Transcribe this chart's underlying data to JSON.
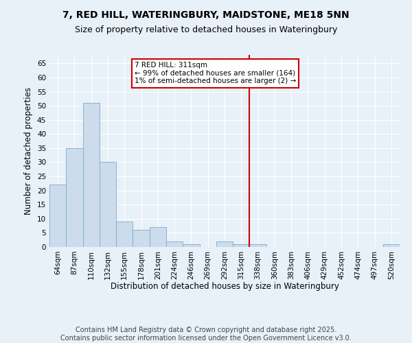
{
  "title": "7, RED HILL, WATERINGBURY, MAIDSTONE, ME18 5NN",
  "subtitle": "Size of property relative to detached houses in Wateringbury",
  "xlabel": "Distribution of detached houses by size in Wateringbury",
  "ylabel": "Number of detached properties",
  "bar_labels": [
    "64sqm",
    "87sqm",
    "110sqm",
    "132sqm",
    "155sqm",
    "178sqm",
    "201sqm",
    "224sqm",
    "246sqm",
    "269sqm",
    "292sqm",
    "315sqm",
    "338sqm",
    "360sqm",
    "383sqm",
    "406sqm",
    "429sqm",
    "452sqm",
    "474sqm",
    "497sqm",
    "520sqm"
  ],
  "bar_values": [
    22,
    35,
    51,
    30,
    9,
    6,
    7,
    2,
    1,
    0,
    2,
    1,
    1,
    0,
    0,
    0,
    0,
    0,
    0,
    0,
    1
  ],
  "bar_color": "#ccdcec",
  "bar_edge_color": "#7aabcc",
  "vline_x": 11.5,
  "vline_color": "#cc0000",
  "annotation_title": "7 RED HILL: 311sqm",
  "annotation_line1": "← 99% of detached houses are smaller (164)",
  "annotation_line2": "1% of semi-detached houses are larger (2) →",
  "annotation_box_color": "#cc0000",
  "ylim": [
    0,
    68
  ],
  "yticks": [
    0,
    5,
    10,
    15,
    20,
    25,
    30,
    35,
    40,
    45,
    50,
    55,
    60,
    65
  ],
  "background_color": "#e8f0f8",
  "grid_color": "#ffffff",
  "footer_line1": "Contains HM Land Registry data © Crown copyright and database right 2025.",
  "footer_line2": "Contains public sector information licensed under the Open Government Licence v3.0.",
  "title_fontsize": 10,
  "subtitle_fontsize": 9,
  "axis_label_fontsize": 8.5,
  "tick_fontsize": 7.5,
  "footer_fontsize": 7
}
